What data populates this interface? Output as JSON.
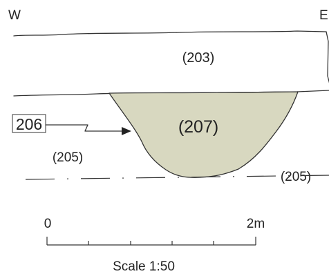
{
  "orientation": {
    "west": "W",
    "east": "E"
  },
  "layers": {
    "top": "(203)",
    "fill": "(207)",
    "left_natural": "(205)",
    "right_natural": "(205)"
  },
  "cut_label": "206",
  "scale_bar": {
    "start_label": "0",
    "end_label": "2m",
    "caption": "Scale 1:50"
  },
  "colors": {
    "fill": "#d8d8c0",
    "ink": "#333333"
  }
}
